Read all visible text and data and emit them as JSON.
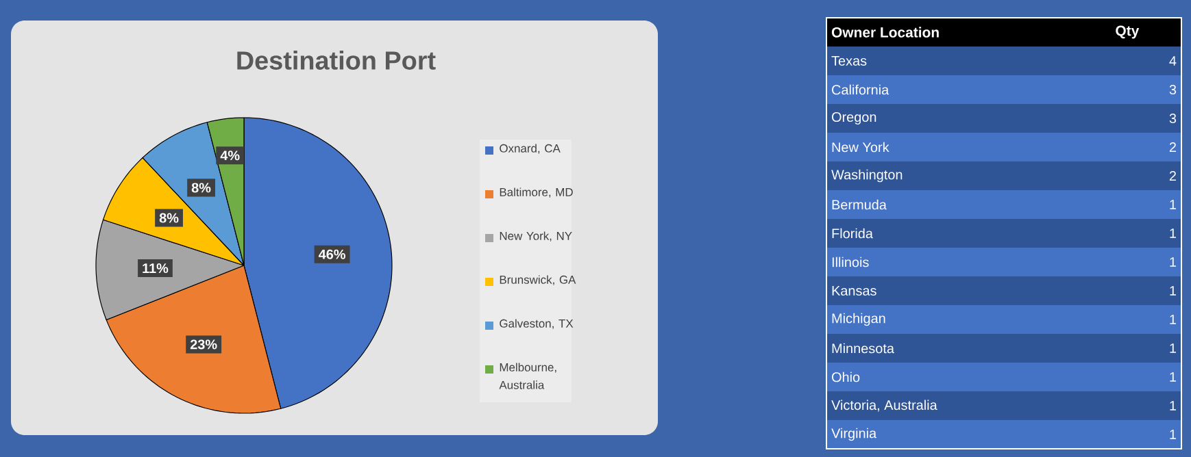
{
  "chart_data": [
    {
      "type": "pie",
      "title": "Destination Port",
      "categories": [
        "Oxnard, CA",
        "Baltimore, MD",
        "New York, NY",
        "Brunswick, GA",
        "Galveston, TX",
        "Melbourne, Australia"
      ],
      "values": [
        46,
        23,
        11,
        8,
        8,
        4
      ],
      "value_labels": [
        "46%",
        "23%",
        "11%",
        "8%",
        "8%",
        "4%"
      ],
      "colors": [
        "#4472c4",
        "#ed7d31",
        "#a5a5a5",
        "#ffc000",
        "#5b9bd5",
        "#70ad47"
      ],
      "legend": "right"
    },
    {
      "type": "other",
      "xlabel": "Owner Location",
      "ylabel": "Qty",
      "categories": [
        "Texas",
        "California",
        "Oregon",
        "New York",
        "Washington",
        "Bermuda",
        "Florida",
        "Illinois",
        "Kansas",
        "Michigan",
        "Minnesota",
        "Ohio",
        "Victoria, Australia",
        "Virginia"
      ],
      "values": [
        4,
        3,
        3,
        2,
        2,
        1,
        1,
        1,
        1,
        1,
        1,
        1,
        1,
        1
      ],
      "data_labels": true
    }
  ]
}
